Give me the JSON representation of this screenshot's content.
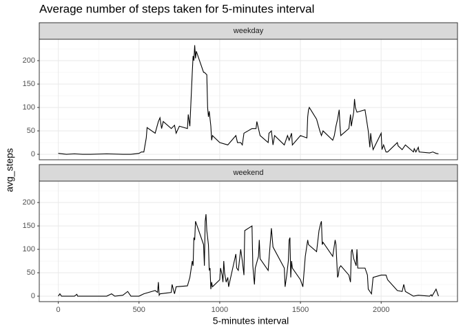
{
  "chart_data": {
    "type": "line",
    "title": "Average number of steps taken for 5-minutes interval",
    "x_label": "5-minutes interval",
    "y_label": "avg_steps",
    "xlim": [
      -117.75,
      2472.75
    ],
    "xticks": [
      0,
      500,
      1000,
      1500,
      2000
    ],
    "ylim": [
      -11.7,
      245.7
    ],
    "yticks": [
      0,
      50,
      100,
      150,
      200
    ],
    "grid": true,
    "series": [
      {
        "name": "weekday",
        "color": "#000000",
        "x": [
          0,
          50,
          100,
          150,
          200,
          300,
          400,
          450,
          500,
          515,
          530,
          545,
          550,
          600,
          620,
          630,
          640,
          650,
          700,
          720,
          730,
          750,
          800,
          805,
          815,
          830,
          835,
          840,
          845,
          850,
          855,
          900,
          905,
          920,
          925,
          930,
          935,
          945,
          950,
          955,
          1000,
          1050,
          1100,
          1110,
          1130,
          1140,
          1150,
          1200,
          1225,
          1230,
          1240,
          1250,
          1300,
          1305,
          1320,
          1330,
          1340,
          1400,
          1420,
          1430,
          1445,
          1450,
          1500,
          1540,
          1545,
          1550,
          1555,
          1600,
          1620,
          1630,
          1640,
          1700,
          1710,
          1720,
          1730,
          1740,
          1745,
          1750,
          1800,
          1810,
          1815,
          1830,
          1835,
          1840,
          1850,
          1900,
          1920,
          1930,
          1935,
          1940,
          1950,
          2000,
          2005,
          2015,
          2030,
          2040,
          2100,
          2105,
          2130,
          2150,
          2200,
          2205,
          2215,
          2230,
          2235,
          2300,
          2320,
          2340,
          2355
        ],
        "values": [
          2,
          0,
          1,
          0,
          0,
          1,
          0,
          0,
          2,
          5,
          5,
          35,
          57,
          45,
          70,
          78,
          55,
          70,
          55,
          62,
          45,
          60,
          55,
          85,
          60,
          175,
          210,
          200,
          233,
          205,
          220,
          175,
          175,
          170,
          100,
          80,
          92,
          60,
          30,
          40,
          25,
          20,
          40,
          25,
          25,
          20,
          45,
          55,
          55,
          70,
          55,
          40,
          25,
          45,
          50,
          20,
          40,
          20,
          40,
          30,
          45,
          20,
          40,
          35,
          80,
          95,
          100,
          75,
          50,
          40,
          50,
          30,
          40,
          60,
          75,
          95,
          60,
          40,
          55,
          85,
          60,
          90,
          118,
          100,
          90,
          95,
          50,
          15,
          45,
          30,
          10,
          45,
          10,
          20,
          5,
          5,
          25,
          18,
          10,
          20,
          5,
          12,
          5,
          15,
          5,
          3,
          5,
          2,
          1
        ]
      },
      {
        "name": "weekend",
        "color": "#000000",
        "x": [
          0,
          10,
          20,
          100,
          115,
          120,
          200,
          300,
          330,
          350,
          400,
          430,
          450,
          500,
          530,
          600,
          615,
          620,
          625,
          630,
          700,
          705,
          720,
          730,
          800,
          815,
          830,
          835,
          840,
          845,
          850,
          855,
          900,
          905,
          910,
          915,
          920,
          930,
          935,
          940,
          945,
          950,
          955,
          1000,
          1005,
          1015,
          1020,
          1025,
          1030,
          1040,
          1050,
          1055,
          1100,
          1105,
          1115,
          1130,
          1140,
          1150,
          1155,
          1200,
          1205,
          1215,
          1220,
          1240,
          1245,
          1250,
          1300,
          1320,
          1330,
          1400,
          1405,
          1415,
          1425,
          1430,
          1435,
          1440,
          1445,
          1450,
          1500,
          1515,
          1530,
          1545,
          1550,
          1600,
          1615,
          1625,
          1630,
          1635,
          1640,
          1700,
          1715,
          1720,
          1730,
          1735,
          1740,
          1750,
          1800,
          1810,
          1815,
          1820,
          1830,
          1845,
          1850,
          1855,
          1900,
          1915,
          1920,
          1940,
          1950,
          2000,
          2030,
          2040,
          2100,
          2130,
          2140,
          2150,
          2200,
          2230,
          2300,
          2310,
          2315,
          2340,
          2350,
          2355
        ],
        "values": [
          0,
          5,
          0,
          0,
          4,
          0,
          0,
          0,
          5,
          0,
          2,
          10,
          0,
          0,
          5,
          12,
          8,
          30,
          2,
          5,
          8,
          25,
          5,
          20,
          22,
          40,
          75,
          65,
          125,
          120,
          160,
          155,
          110,
          65,
          160,
          175,
          140,
          110,
          55,
          60,
          15,
          30,
          20,
          35,
          60,
          45,
          30,
          75,
          50,
          30,
          40,
          20,
          90,
          60,
          55,
          100,
          75,
          45,
          140,
          150,
          65,
          25,
          60,
          85,
          120,
          80,
          55,
          145,
          105,
          60,
          20,
          45,
          75,
          120,
          125,
          40,
          75,
          60,
          35,
          20,
          85,
          120,
          110,
          95,
          140,
          155,
          160,
          110,
          115,
          85,
          120,
          110,
          40,
          45,
          60,
          65,
          45,
          30,
          95,
          100,
          80,
          65,
          100,
          60,
          60,
          45,
          15,
          5,
          40,
          45,
          45,
          35,
          12,
          10,
          25,
          10,
          0,
          2,
          0,
          3,
          0,
          15,
          5,
          0
        ]
      }
    ]
  }
}
